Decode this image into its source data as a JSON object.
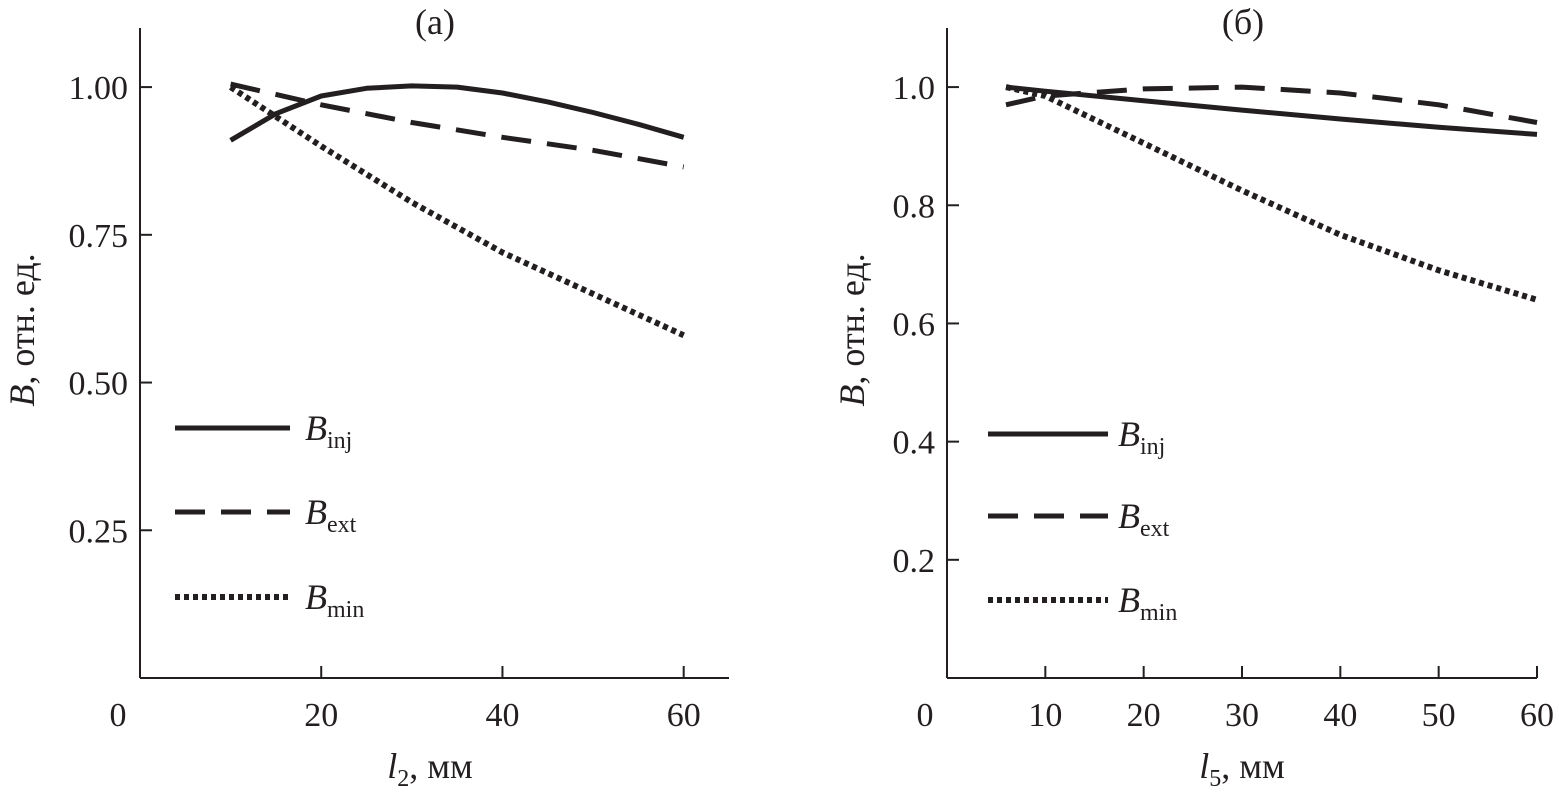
{
  "chart_data": [
    {
      "type": "line",
      "panel": "a",
      "title": "(a)",
      "xlabel": {
        "var": "l",
        "sub": "2",
        "unit": ", мм"
      },
      "ylabel": {
        "var": "B",
        "rest": ", отн. ед."
      },
      "xlim": [
        0,
        65
      ],
      "ylim": [
        0,
        1.1
      ],
      "xticks": [
        {
          "value": 0,
          "label": "0"
        },
        {
          "value": 20,
          "label": "20"
        },
        {
          "value": 40,
          "label": "40"
        },
        {
          "value": 60,
          "label": "60"
        }
      ],
      "yticks": [
        {
          "value": 0.25,
          "label": "0.25"
        },
        {
          "value": 0.5,
          "label": "0.50"
        },
        {
          "value": 0.75,
          "label": "0.75"
        },
        {
          "value": 1.0,
          "label": "1.00"
        }
      ],
      "legend_position": "lower-left",
      "series": [
        {
          "name": "B_inj",
          "main": "B",
          "sub": "inj",
          "style": "solid",
          "x": [
            10,
            15,
            20,
            25,
            30,
            35,
            40,
            45,
            50,
            55,
            60
          ],
          "y": [
            0.91,
            0.955,
            0.985,
            0.998,
            1.002,
            1.0,
            0.99,
            0.975,
            0.957,
            0.937,
            0.915
          ]
        },
        {
          "name": "B_ext",
          "main": "B",
          "sub": "ext",
          "style": "dashed",
          "x": [
            10,
            20,
            30,
            40,
            50,
            60
          ],
          "y": [
            1.005,
            0.97,
            0.94,
            0.915,
            0.893,
            0.865
          ]
        },
        {
          "name": "B_min",
          "main": "B",
          "sub": "min",
          "style": "dotted",
          "x": [
            10,
            20,
            30,
            40,
            50,
            60
          ],
          "y": [
            1.0,
            0.9,
            0.805,
            0.72,
            0.65,
            0.58
          ]
        }
      ]
    },
    {
      "type": "line",
      "panel": "б",
      "title": "(б)",
      "xlabel": {
        "var": "l",
        "sub": "5",
        "unit": ", мм"
      },
      "ylabel": {
        "var": "B",
        "rest": ", отн. ед."
      },
      "xlim": [
        0,
        60
      ],
      "ylim": [
        0,
        1.1
      ],
      "xticks": [
        {
          "value": 0,
          "label": "0"
        },
        {
          "value": 10,
          "label": "10"
        },
        {
          "value": 20,
          "label": "20"
        },
        {
          "value": 30,
          "label": "30"
        },
        {
          "value": 40,
          "label": "40"
        },
        {
          "value": 50,
          "label": "50"
        },
        {
          "value": 60,
          "label": "60"
        }
      ],
      "yticks": [
        {
          "value": 0.2,
          "label": "0.2"
        },
        {
          "value": 0.4,
          "label": "0.4"
        },
        {
          "value": 0.6,
          "label": "0.6"
        },
        {
          "value": 0.8,
          "label": "0.8"
        },
        {
          "value": 1.0,
          "label": "1.0"
        }
      ],
      "legend_position": "lower-left",
      "series": [
        {
          "name": "B_inj",
          "main": "B",
          "sub": "inj",
          "style": "solid",
          "x": [
            6,
            10,
            20,
            30,
            40,
            50,
            60
          ],
          "y": [
            1.0,
            0.993,
            0.977,
            0.961,
            0.946,
            0.932,
            0.92
          ]
        },
        {
          "name": "B_ext",
          "main": "B",
          "sub": "ext",
          "style": "dashed",
          "x": [
            6,
            10,
            20,
            30,
            40,
            50,
            60
          ],
          "y": [
            0.97,
            0.985,
            0.997,
            1.0,
            0.99,
            0.97,
            0.94
          ]
        },
        {
          "name": "B_min",
          "main": "B",
          "sub": "min",
          "style": "dotted",
          "x": [
            6,
            10,
            20,
            30,
            40,
            50,
            60
          ],
          "y": [
            1.0,
            0.985,
            0.905,
            0.825,
            0.75,
            0.69,
            0.64
          ]
        }
      ]
    }
  ]
}
